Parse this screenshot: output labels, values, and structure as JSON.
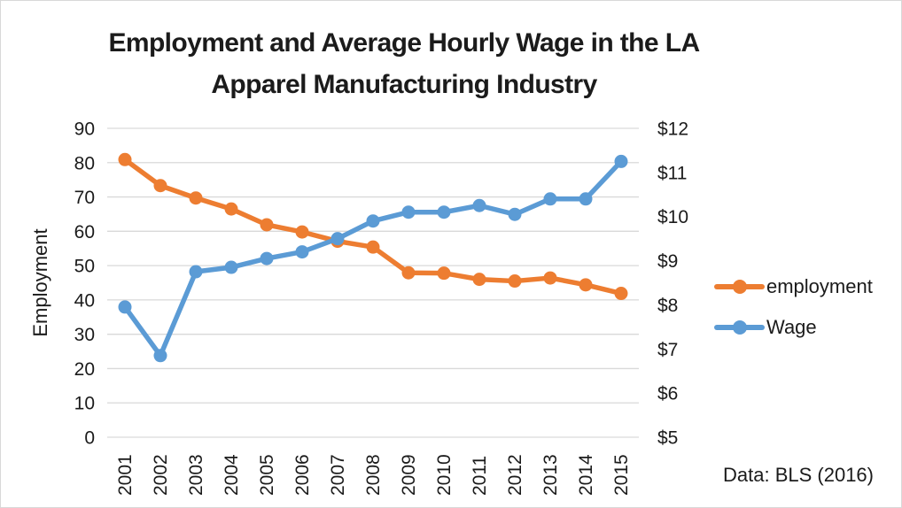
{
  "header": {
    "title_line1": "Employment and Average Hourly Wage in the LA",
    "title_line2": "Apparel Manufacturing Industry"
  },
  "chart_data": {
    "type": "line",
    "title": "Employment and Average Hourly Wage in the LA Apparel Manufacturing Industry",
    "categories": [
      "2001",
      "2002",
      "2003",
      "2004",
      "2005",
      "2006",
      "2007",
      "2008",
      "2009",
      "2010",
      "2011",
      "2012",
      "2013",
      "2014",
      "2015"
    ],
    "series": [
      {
        "name": "employment",
        "axis": "left",
        "color": "#ED7D31",
        "values": [
          80.9,
          73.3,
          69.7,
          66.5,
          61.9,
          59.8,
          57.1,
          55.4,
          47.9,
          47.8,
          46.0,
          45.5,
          46.4,
          44.4,
          41.9
        ]
      },
      {
        "name": "Wage",
        "axis": "right",
        "color": "#5B9BD5",
        "values": [
          7.95,
          6.85,
          8.75,
          8.85,
          9.05,
          9.2,
          9.5,
          9.9,
          10.1,
          10.1,
          10.25,
          10.05,
          10.4,
          10.4,
          11.25
        ]
      }
    ],
    "left_axis": {
      "label": "Employment",
      "min": 0,
      "max": 90,
      "step": 10,
      "tick_labels": [
        "0",
        "10",
        "20",
        "30",
        "40",
        "50",
        "60",
        "70",
        "80",
        "90"
      ]
    },
    "right_axis": {
      "label": "",
      "min": 5,
      "max": 12,
      "step": 1,
      "tick_labels": [
        "$5",
        "$6",
        "$7",
        "$8",
        "$9",
        "$10",
        "$11",
        "$12"
      ]
    },
    "grid": true,
    "gridline_color": "#D9D9D9",
    "text_color": "#1b1b1b",
    "legend_position": "right"
  },
  "annotation": {
    "source_note": "Data: BLS (2016)"
  }
}
